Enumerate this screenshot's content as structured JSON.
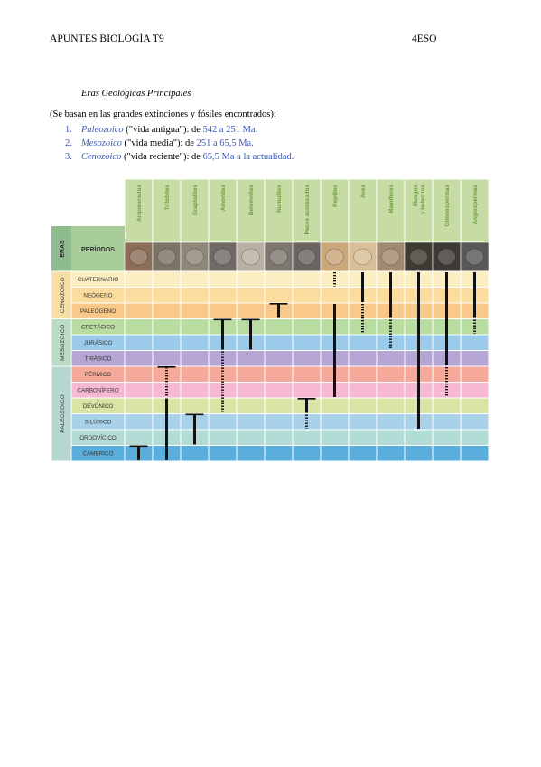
{
  "header": {
    "left": "APUNTES BIOLOGÍA T9",
    "right": "4ESO"
  },
  "subtitle": "Eras Geológicas Principales",
  "intro": "(Se basan en las grandes extinciones y fósiles encontrados):",
  "eras_list": [
    {
      "num": "1.",
      "name": "Paleozoico",
      "desc": " (\"vida antigua\"): de ",
      "range": "542 a 251 Ma."
    },
    {
      "num": "2.",
      "name": "Mesozoico",
      "desc": " (\"vida media\"): de ",
      "range": "251 a 65,5 Ma."
    },
    {
      "num": "3.",
      "name": "Cenozoico",
      "desc": " (\"vida reciente\"): de ",
      "range": "65,5 Ma a la actualidad."
    }
  ],
  "colors": {
    "accent_blue": "#3a5bbf",
    "header_green": "#c6dca4",
    "header_text": "#6e9a3c",
    "grid": "#ffffff"
  },
  "table": {
    "eras_label": "ERAS",
    "periods_label": "PERÍODOS",
    "groups": [
      "Arqueociatos",
      "Trilobites",
      "Graptolitos",
      "Amonites",
      "Belemnites",
      "Numulites",
      "Peces acorazados",
      "Reptiles",
      "Aves",
      "Mamíferos",
      "Musgos y helechos",
      "Gimnospermas",
      "Angiospermas"
    ],
    "group_icons": [
      "archaeocyath-fossil-icon",
      "trilobite-fossil-icon",
      "graptolite-fossil-icon",
      "ammonite-fossil-icon",
      "belemnite-fossil-icon",
      "nummulite-fossil-icon",
      "armored-fish-fossil-icon",
      "reptile-fossil-icon",
      "bird-fossil-icon",
      "mammal-fossil-icon",
      "fern-fossil-icon",
      "gymnosperm-fossil-icon",
      "angiosperm-fossil-icon"
    ],
    "eras": [
      {
        "name": "CENOZOICO",
        "color": "#f7dfa4",
        "periods": [
          {
            "name": "CUATERNARIO",
            "color": "#fbeec3"
          },
          {
            "name": "NEÓGENO",
            "color": "#fadd9e"
          },
          {
            "name": "PALEÓGENO",
            "color": "#f8c98b"
          }
        ]
      },
      {
        "name": "MESOZOICO",
        "color": "#b9dcc4",
        "periods": [
          {
            "name": "CRETÁCICO",
            "color": "#b9dca0"
          },
          {
            "name": "JURÁSICO",
            "color": "#9ccaeb"
          },
          {
            "name": "TRIÁSICO",
            "color": "#b5a6d4"
          }
        ]
      },
      {
        "name": "PALEOZOICO",
        "color": "#b6d6d0",
        "periods": [
          {
            "name": "PÉRMICO",
            "color": "#f4a99a"
          },
          {
            "name": "CARBONÍFERO",
            "color": "#f6b8d2"
          },
          {
            "name": "DEVÓNICO",
            "color": "#d9e4a4"
          },
          {
            "name": "SILÚRICO",
            "color": "#a9d2ea"
          },
          {
            "name": "ORDOVÍCICO",
            "color": "#b4dcd6"
          },
          {
            "name": "CÁMBRICO",
            "color": "#5aaede"
          }
        ]
      }
    ],
    "ranges": [
      {
        "group": "Arqueociatos",
        "solid": [
          "CÁMBRICO",
          "CÁMBRICO"
        ],
        "dashed": null,
        "cap": true
      },
      {
        "group": "Trilobites",
        "solid": [
          "CÁMBRICO",
          "DEVÓNICO"
        ],
        "dashed": [
          "CARBONÍFERO",
          "PÉRMICO"
        ],
        "cap": true
      },
      {
        "group": "Graptolitos",
        "solid": [
          "ORDOVÍCICO",
          "SILÚRICO"
        ],
        "dashed": null,
        "cap": true
      },
      {
        "group": "Amonites",
        "solid": [
          "JURÁSICO",
          "CRETÁCICO"
        ],
        "dashed": [
          "DEVÓNICO",
          "TRIÁSICO"
        ],
        "cap": true
      },
      {
        "group": "Belemnites",
        "solid": [
          "JURÁSICO",
          "CRETÁCICO"
        ],
        "dashed": null,
        "cap": true
      },
      {
        "group": "Numulites",
        "solid": [
          "PALEÓGENO",
          "PALEÓGENO"
        ],
        "dashed": null,
        "cap": true
      },
      {
        "group": "Peces acorazados",
        "solid": [
          "DEVÓNICO",
          "DEVÓNICO"
        ],
        "dashed": [
          "SILÚRICO",
          "SILÚRICO"
        ],
        "cap": true
      },
      {
        "group": "Reptiles",
        "solid": [
          "CARBONÍFERO",
          "PALEÓGENO"
        ],
        "dashed": [
          "CUATERNARIO",
          "CUATERNARIO"
        ],
        "cap": false
      },
      {
        "group": "Aves",
        "solid": [
          "CUATERNARIO",
          "NEÓGENO"
        ],
        "dashed": [
          "CRETÁCICO",
          "PALEÓGENO"
        ],
        "cap": false
      },
      {
        "group": "Mamíferos",
        "solid": [
          "CUATERNARIO",
          "PALEÓGENO"
        ],
        "dashed": [
          "JURÁSICO",
          "CRETÁCICO"
        ],
        "cap": false
      },
      {
        "group": "Musgos y helechos",
        "solid": [
          "CUATERNARIO",
          "SILÚRICO"
        ],
        "dashed": null,
        "cap": false
      },
      {
        "group": "Gimnospermas",
        "solid": [
          "CUATERNARIO",
          "TRIÁSICO"
        ],
        "dashed": [
          "PÉRMICO",
          "CARBONÍFERO"
        ],
        "cap": false
      },
      {
        "group": "Angiospermas",
        "solid": [
          "CUATERNARIO",
          "PALEÓGENO"
        ],
        "dashed": [
          "CRETÁCICO",
          "CRETÁCICO"
        ],
        "cap": false
      }
    ]
  }
}
